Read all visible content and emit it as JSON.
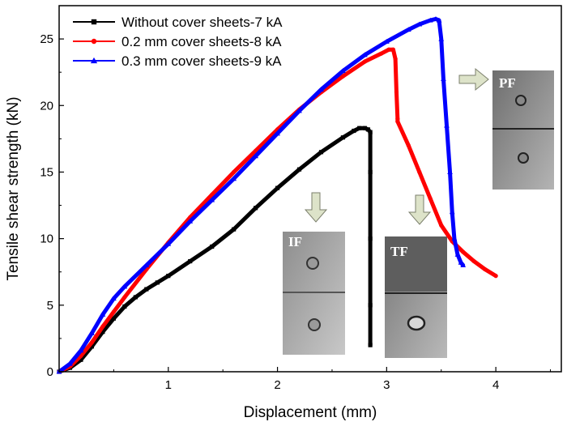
{
  "chart_data": {
    "type": "line",
    "title": "",
    "xlabel": "Displacement (mm)",
    "ylabel": "Tensile shear strength (kN)",
    "xlim": [
      0,
      4.6
    ],
    "ylim": [
      0,
      27.5
    ],
    "xticks": [
      1,
      2,
      3,
      4
    ],
    "yticks": [
      0,
      5,
      10,
      15,
      20,
      25
    ],
    "grid": false,
    "legend_position": "top-left",
    "series": [
      {
        "name": "Without cover sheets-7 kA",
        "color": "#000000",
        "marker": "square",
        "x": [
          0.0,
          0.1,
          0.2,
          0.3,
          0.4,
          0.5,
          0.6,
          0.7,
          0.8,
          0.9,
          1.0,
          1.2,
          1.4,
          1.6,
          1.8,
          2.0,
          2.2,
          2.4,
          2.6,
          2.7,
          2.75,
          2.8,
          2.83,
          2.85,
          2.85,
          2.85,
          2.85,
          2.85
        ],
        "y": [
          0.0,
          0.3,
          0.9,
          1.9,
          3.0,
          4.0,
          4.9,
          5.6,
          6.2,
          6.7,
          7.2,
          8.3,
          9.4,
          10.7,
          12.3,
          13.8,
          15.2,
          16.5,
          17.6,
          18.1,
          18.3,
          18.3,
          18.2,
          18.0,
          15.0,
          10.0,
          5.0,
          2.0
        ]
      },
      {
        "name": "0.2 mm cover sheets-8 kA",
        "color": "#ff0000",
        "marker": "circle",
        "x": [
          0.0,
          0.1,
          0.2,
          0.3,
          0.4,
          0.5,
          0.6,
          0.8,
          1.0,
          1.2,
          1.4,
          1.6,
          1.8,
          2.0,
          2.2,
          2.4,
          2.6,
          2.8,
          2.95,
          3.02,
          3.06,
          3.08,
          3.09,
          3.1,
          3.1,
          3.2,
          3.3,
          3.4,
          3.5,
          3.6,
          3.7,
          3.8,
          3.9,
          4.0
        ],
        "y": [
          0.0,
          0.4,
          1.2,
          2.2,
          3.4,
          4.5,
          5.6,
          7.7,
          9.7,
          11.6,
          13.3,
          15.0,
          16.6,
          18.2,
          19.7,
          21.0,
          22.2,
          23.3,
          23.9,
          24.2,
          24.2,
          23.5,
          21.0,
          19.0,
          18.8,
          17.0,
          15.0,
          13.0,
          11.0,
          9.8,
          9.0,
          8.3,
          7.7,
          7.2
        ]
      },
      {
        "name": "0.3 mm cover sheets-9 kA",
        "color": "#0000ff",
        "marker": "triangle",
        "x": [
          0.0,
          0.1,
          0.2,
          0.3,
          0.4,
          0.5,
          0.6,
          0.8,
          1.0,
          1.2,
          1.4,
          1.6,
          1.8,
          2.0,
          2.2,
          2.4,
          2.6,
          2.8,
          3.0,
          3.2,
          3.3,
          3.4,
          3.45,
          3.48,
          3.5,
          3.52,
          3.55,
          3.58,
          3.6,
          3.62,
          3.65,
          3.68,
          3.7
        ],
        "y": [
          0.0,
          0.6,
          1.6,
          2.9,
          4.3,
          5.5,
          6.4,
          8.0,
          9.6,
          11.3,
          12.9,
          14.5,
          16.2,
          17.9,
          19.6,
          21.2,
          22.6,
          23.8,
          24.8,
          25.7,
          26.1,
          26.4,
          26.5,
          26.4,
          25.0,
          22.0,
          18.5,
          15.0,
          12.0,
          10.0,
          8.8,
          8.2,
          8.0
        ]
      }
    ],
    "annotations": [
      {
        "label": "IF",
        "x": 2.25
      },
      {
        "label": "TF",
        "x": 3.25
      },
      {
        "label": "PF",
        "x": 3.9
      }
    ]
  }
}
